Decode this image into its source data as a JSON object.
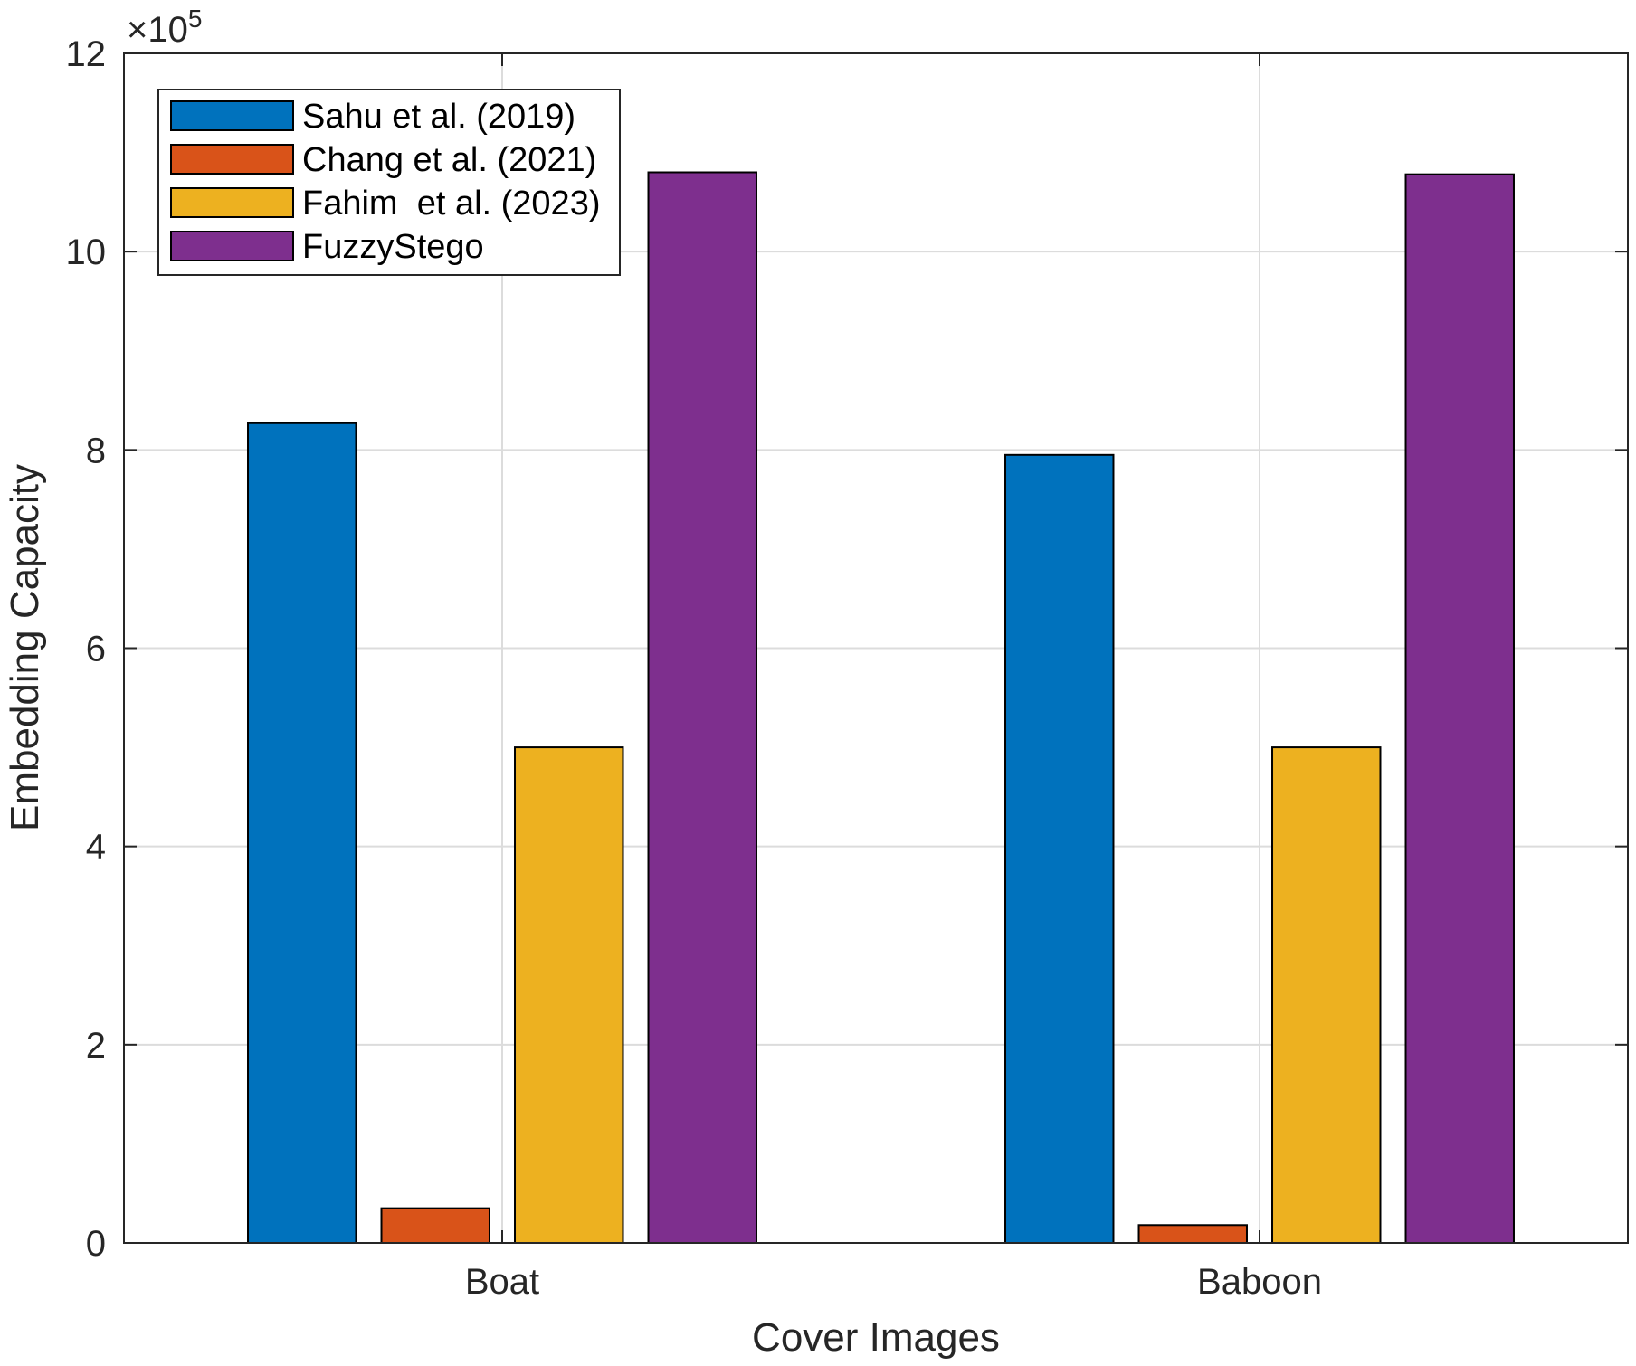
{
  "chart_data": {
    "type": "bar",
    "title": "",
    "xlabel": "Cover Images",
    "ylabel": "Embedding Capacity",
    "exponent_label": "×10",
    "exponent_power": "5",
    "scale": 100000,
    "categories": [
      "Boat",
      "Baboon"
    ],
    "series": [
      {
        "name": "Sahu et al. (2019)",
        "color": "#0072BD",
        "values": [
          8.27,
          7.95
        ]
      },
      {
        "name": "Chang et al. (2021)",
        "color": "#D95319",
        "values": [
          0.35,
          0.18
        ]
      },
      {
        "name": "Fahim  et al. (2023)",
        "color": "#EDB120",
        "values": [
          5.0,
          5.0
        ]
      },
      {
        "name": "FuzzyStego",
        "color": "#7E2F8E",
        "values": [
          10.8,
          10.78
        ]
      }
    ],
    "ylim": [
      0,
      12
    ],
    "yticks": [
      0,
      2,
      4,
      6,
      8,
      10,
      12
    ],
    "ytick_labels": [
      "0",
      "2",
      "4",
      "6",
      "8",
      "10",
      "12"
    ],
    "grid": true,
    "legend_position": "top-left"
  }
}
